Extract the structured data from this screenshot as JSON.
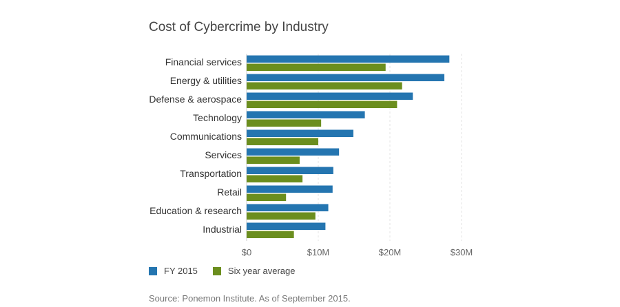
{
  "chart_data": {
    "type": "bar",
    "orientation": "horizontal",
    "title": "Cost of Cybercrime by Industry",
    "categories": [
      "Financial services",
      "Energy & utilities",
      "Defense & aerospace",
      "Technology",
      "Communications",
      "Services",
      "Transportation",
      "Retail",
      "Education & research",
      "Industrial"
    ],
    "series": [
      {
        "name": "FY 2015",
        "color": "#2475b0",
        "values": [
          28.3,
          27.6,
          23.2,
          16.5,
          14.9,
          12.9,
          12.1,
          12.0,
          11.4,
          11.0
        ]
      },
      {
        "name": "Six year average",
        "color": "#6b8e1e",
        "values": [
          19.4,
          21.7,
          21.0,
          10.4,
          10.0,
          7.4,
          7.8,
          5.5,
          9.6,
          6.6
        ]
      }
    ],
    "xlim": [
      0,
      30
    ],
    "xticks": [
      0,
      10,
      20,
      30
    ],
    "xtick_labels": [
      "$0",
      "$10M",
      "$20M",
      "$30M"
    ],
    "grid": true,
    "legend_position": "bottom-left"
  },
  "source": "Source: Ponemon Institute. As of September 2015."
}
